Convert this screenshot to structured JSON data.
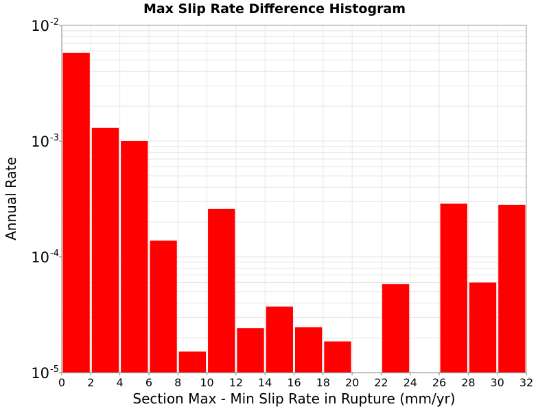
{
  "chart_data": {
    "type": "bar",
    "title": "Max Slip Rate Difference Histogram",
    "xlabel": "Section Max - Min Slip Rate in Rupture (mm/yr)",
    "ylabel": "Annual Rate",
    "xlim": [
      0,
      32
    ],
    "ylim": [
      1e-05,
      0.01
    ],
    "y_scale": "log",
    "grid": true,
    "bar_width": 2,
    "x": [
      1,
      3,
      5,
      7,
      9,
      11,
      13,
      15,
      17,
      19,
      21,
      23,
      25,
      27,
      29,
      31
    ],
    "values": [
      0.0058,
      0.0013,
      0.001,
      0.000138,
      1.52e-05,
      0.00026,
      2.42e-05,
      3.72e-05,
      2.47e-05,
      1.86e-05,
      0,
      5.82e-05,
      0,
      0.000288,
      6e-05,
      0.000282
    ],
    "x_ticks": [
      "0",
      "2",
      "4",
      "6",
      "8",
      "10",
      "12",
      "14",
      "16",
      "18",
      "20",
      "22",
      "24",
      "26",
      "28",
      "30",
      "32"
    ],
    "y_ticks": [
      {
        "value": 0.01,
        "base": "10",
        "exp": "-2"
      },
      {
        "value": 0.001,
        "base": "10",
        "exp": "-3"
      },
      {
        "value": 0.0001,
        "base": "10",
        "exp": "-4"
      },
      {
        "value": 1e-05,
        "base": "10",
        "exp": "-5"
      }
    ],
    "colors": {
      "bar": "#ff0000",
      "grid": "#e6e6e6",
      "frame": "#999999"
    }
  }
}
